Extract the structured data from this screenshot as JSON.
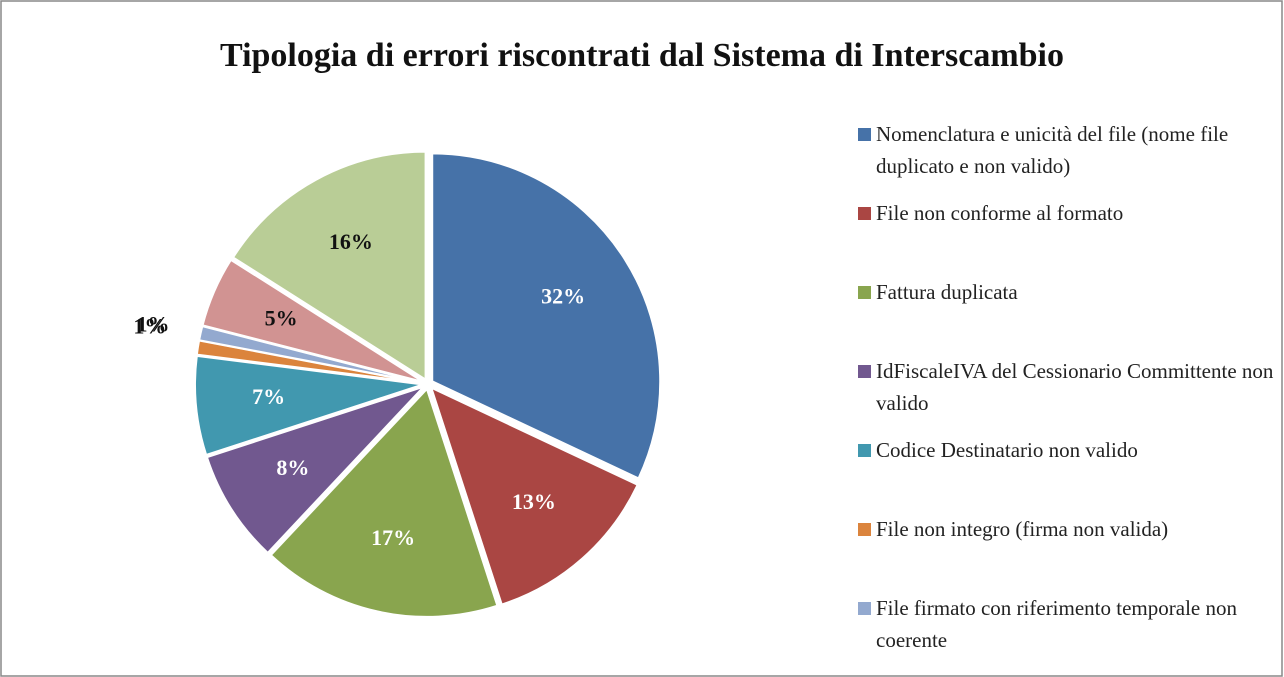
{
  "chart_data": {
    "type": "pie",
    "title": "Tipologia di errori riscontrati dal Sistema di Interscambio",
    "categories": [
      "Nomenclatura e unicità del file (nome file duplicato e non valido)",
      "File non conforme al formato",
      "Fattura duplicata",
      "IdFiscaleIVA del Cessionario Committente non valido",
      "Codice Destinatario non valido",
      "File non integro (firma non valida)",
      "File firmato con riferimento temporale non coerente",
      null,
      null
    ],
    "values": [
      32,
      13,
      17,
      8,
      7,
      1,
      1,
      5,
      16
    ],
    "value_labels": [
      "32%",
      "13%",
      "17%",
      "8%",
      "7%",
      "1%",
      "1%",
      "5%",
      "16%"
    ],
    "colors": [
      "#4672a8",
      "#aa4643",
      "#89a54e",
      "#71588f",
      "#4198af",
      "#db843d",
      "#93a9cf",
      "#d19392",
      "#b9cd96"
    ],
    "legend": "right"
  }
}
